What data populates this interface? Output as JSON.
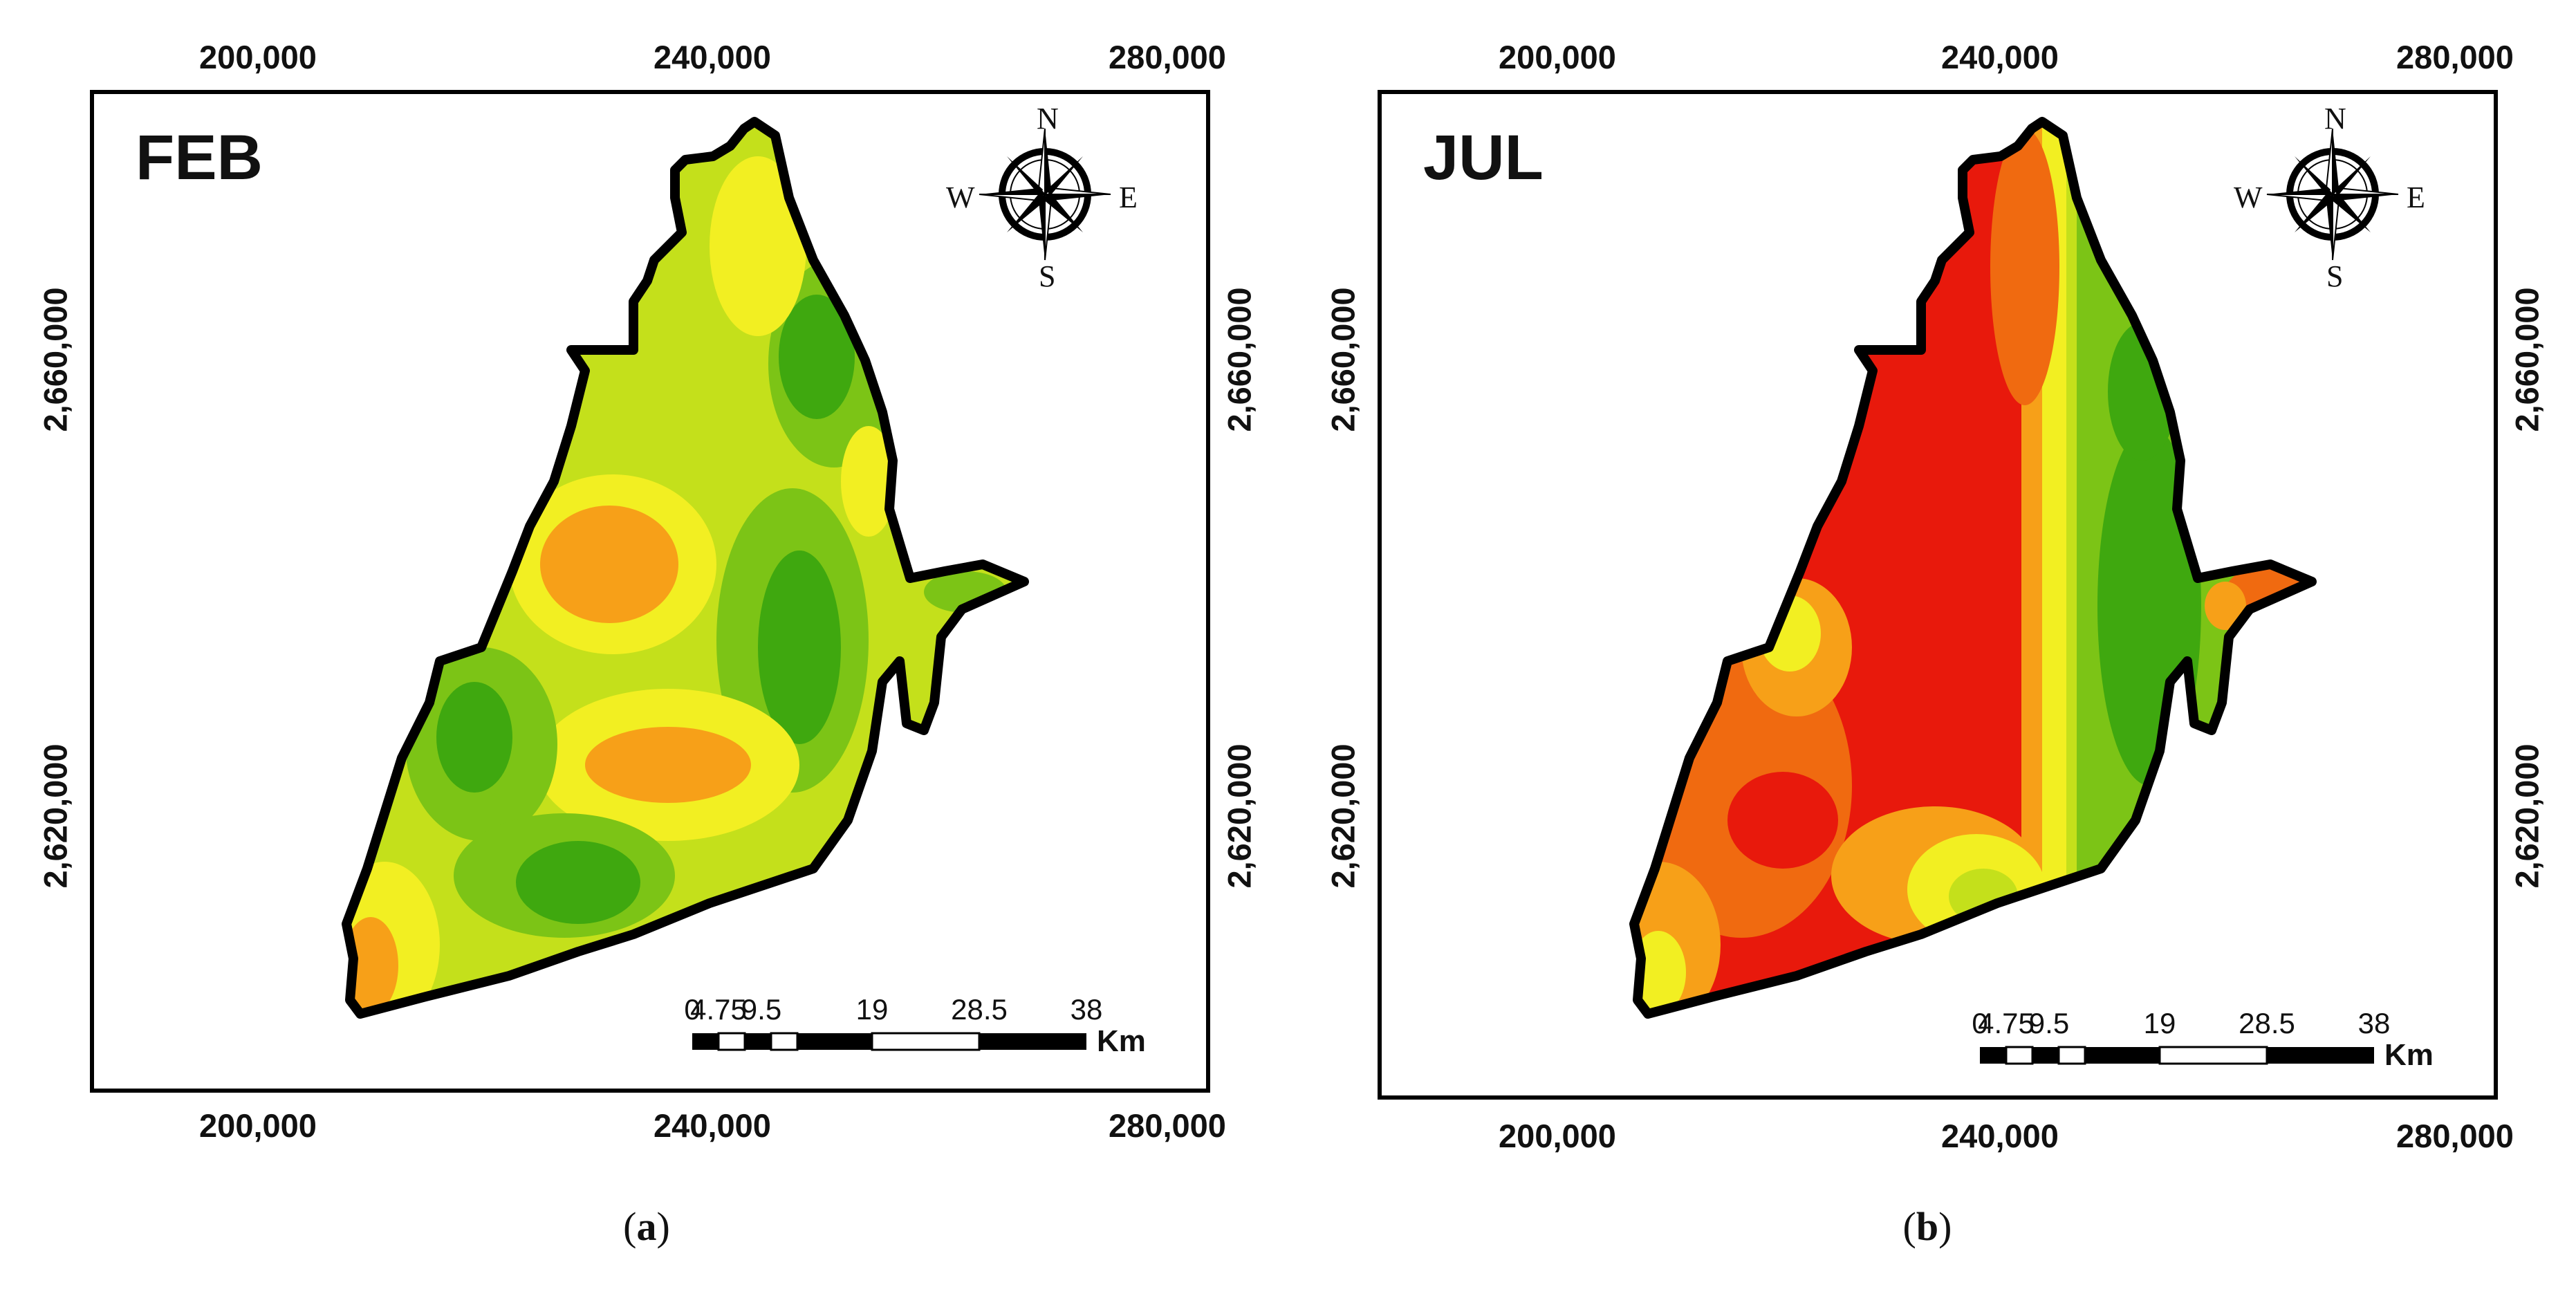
{
  "panels": [
    {
      "id": "a",
      "month": "FEB",
      "caption": "a",
      "x_ticks_top": [
        "200,000",
        "240,000",
        "280,000"
      ],
      "x_ticks_bottom": [
        "200,000",
        "240,000",
        "280,000"
      ],
      "y_ticks_left": [
        "2,660,000",
        "2,620,000"
      ],
      "y_ticks_right": [
        "2,660,000",
        "2,620,000"
      ],
      "compass": {
        "n": "N",
        "s": "S",
        "e": "E",
        "w": "W"
      },
      "scale": {
        "ticks": [
          "0",
          "4.75",
          "9.5",
          "19",
          "28.5",
          "38"
        ],
        "unit": "Km"
      },
      "palette": "green-yellow-orange"
    },
    {
      "id": "b",
      "month": "JUL",
      "caption": "b",
      "x_ticks_top": [
        "200,000",
        "240,000",
        "280,000"
      ],
      "x_ticks_bottom": [
        "200,000",
        "240,000",
        "280,000"
      ],
      "y_ticks_left": [
        "2,660,000",
        "2,620,000"
      ],
      "y_ticks_right": [
        "2,660,000",
        "2,620,000"
      ],
      "compass": {
        "n": "N",
        "s": "S",
        "e": "E",
        "w": "W"
      },
      "scale": {
        "ticks": [
          "0",
          "4.75",
          "9.5",
          "19",
          "28.5",
          "38"
        ],
        "unit": "Km"
      },
      "palette": "red-orange-yellow-green"
    }
  ],
  "colors": {
    "dark_green": "#3fa80f",
    "green": "#7cc416",
    "yellow_green": "#c4e01b",
    "yellow": "#f2ef22",
    "orange": "#f7a018",
    "dark_orange": "#f06a10",
    "red": "#e8190c",
    "outline": "#000000"
  }
}
